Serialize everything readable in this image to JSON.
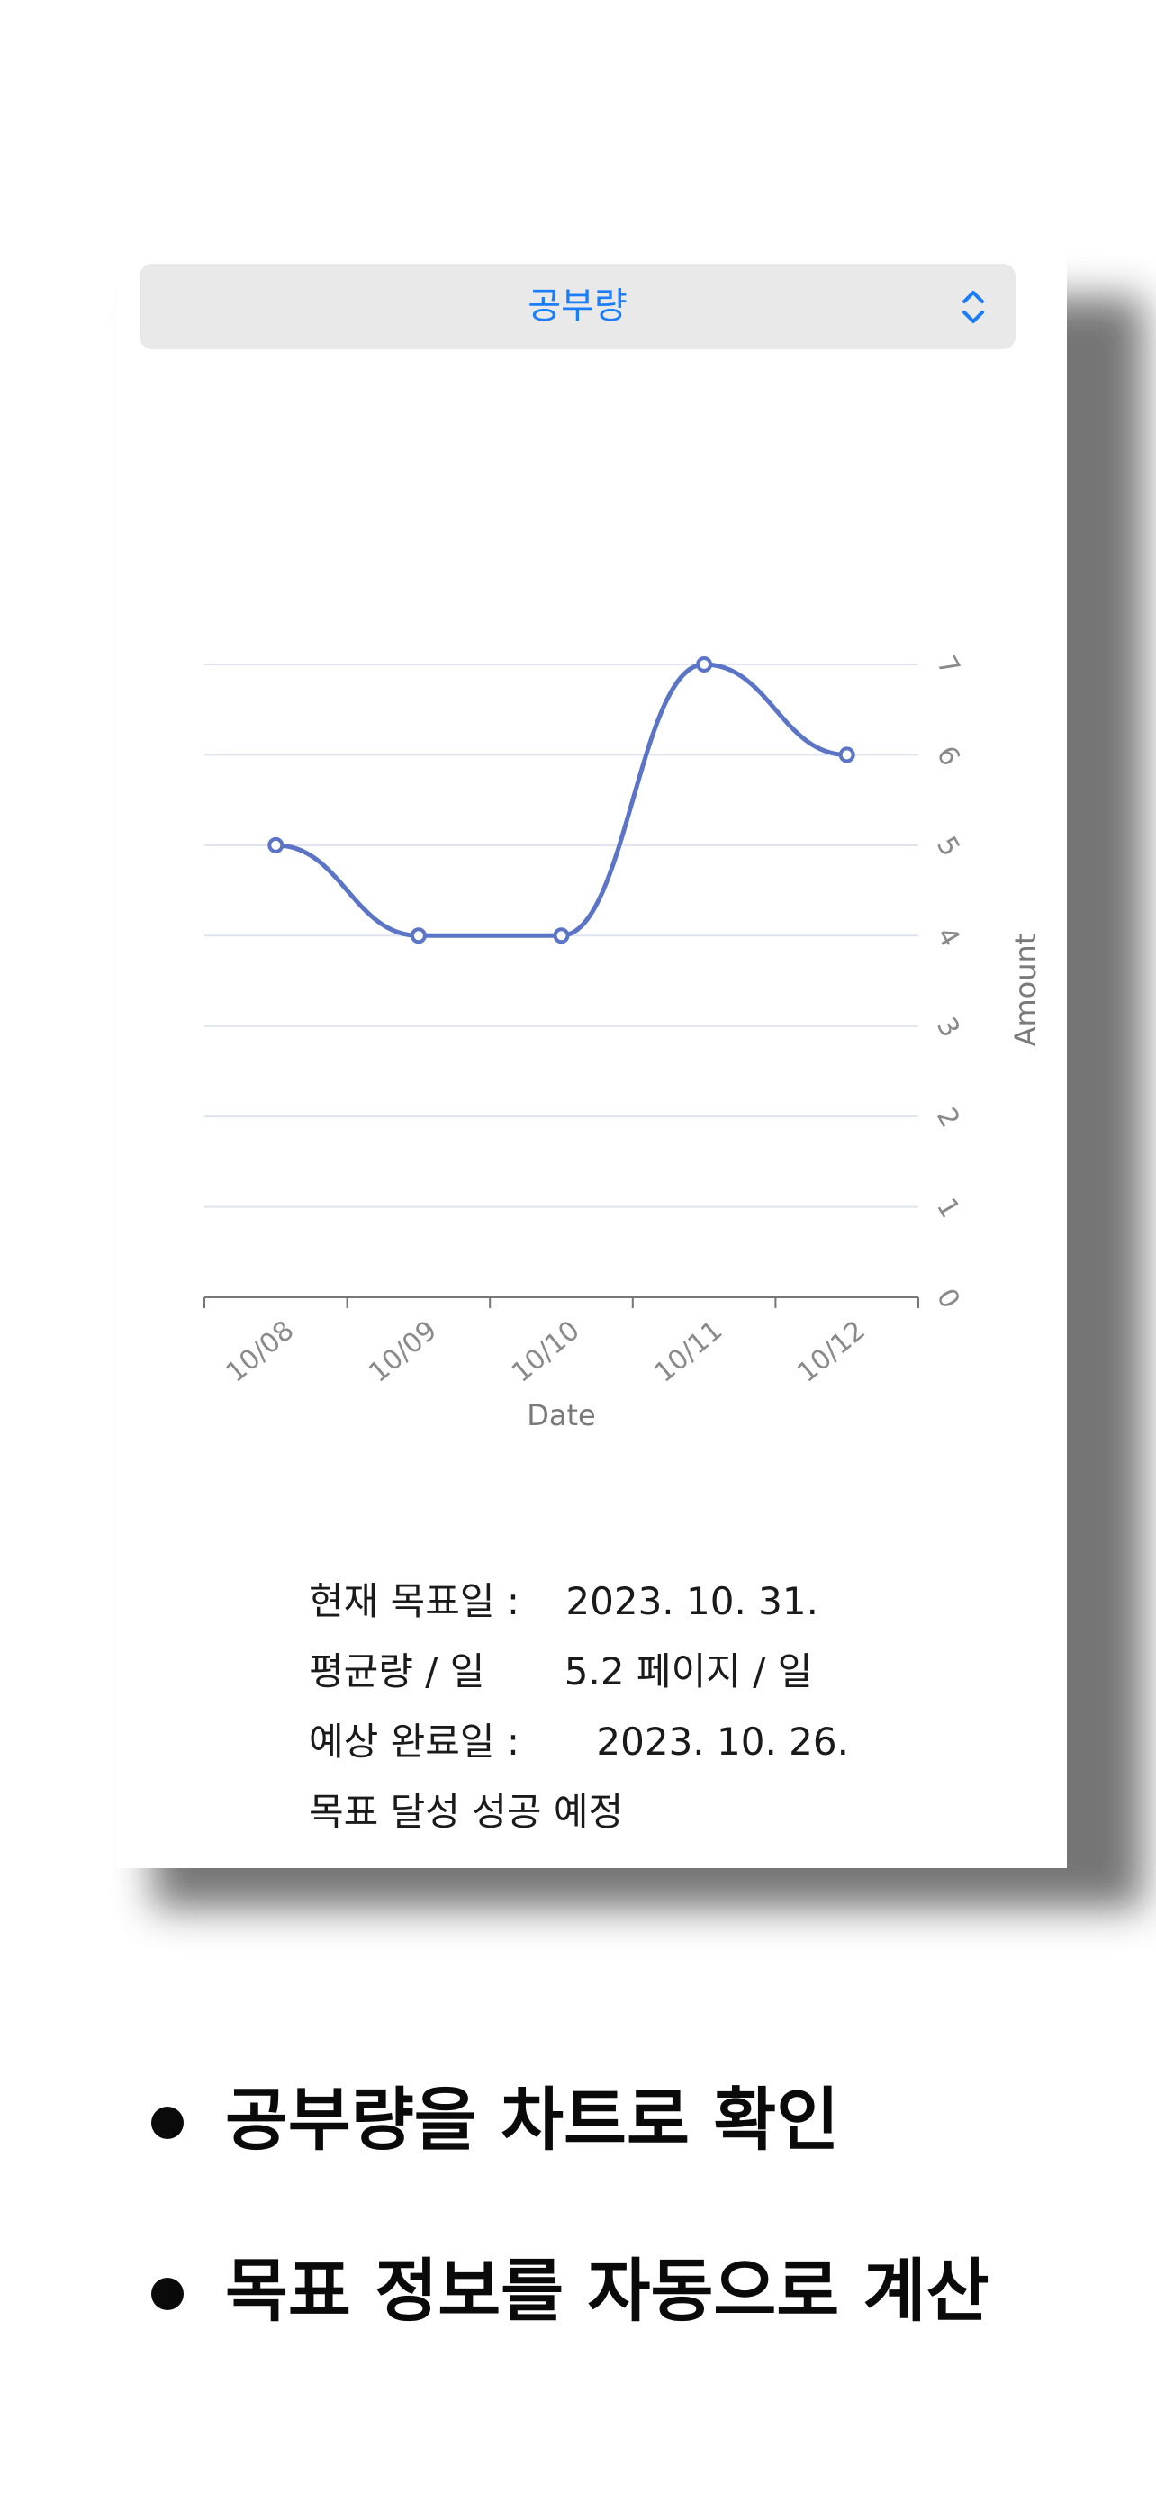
{
  "picker": {
    "selected": "공부량",
    "icon": "chevron-up-down-icon",
    "accent_color": "#1a7dfa"
  },
  "chart_data": {
    "type": "line",
    "categories": [
      "10/08",
      "10/09",
      "10/10",
      "10/11",
      "10/12"
    ],
    "values": [
      5,
      4,
      4,
      7,
      6
    ],
    "xlabel": "Date",
    "ylabel": "Amount",
    "ylim": [
      0,
      7
    ],
    "yticks": [
      "0",
      "1",
      "2",
      "3",
      "4",
      "5",
      "6",
      "7"
    ],
    "y_axis_side": "right",
    "grid": true,
    "line_color": "#5b74c6",
    "interpolation": "smooth"
  },
  "info": {
    "target_date_label": "현재 목표일 :",
    "target_date_value": "2023. 10. 31.",
    "average_label": "평균량 / 일",
    "average_value": "5.2 페이지 / 일",
    "expected_label": "예상 완료일 :",
    "expected_value": "2023. 10. 26.",
    "status": "목표 달성 성공 예정"
  },
  "bullets": [
    "공부량을 차트로 확인",
    "목표 정보를 자동으로 계산"
  ]
}
